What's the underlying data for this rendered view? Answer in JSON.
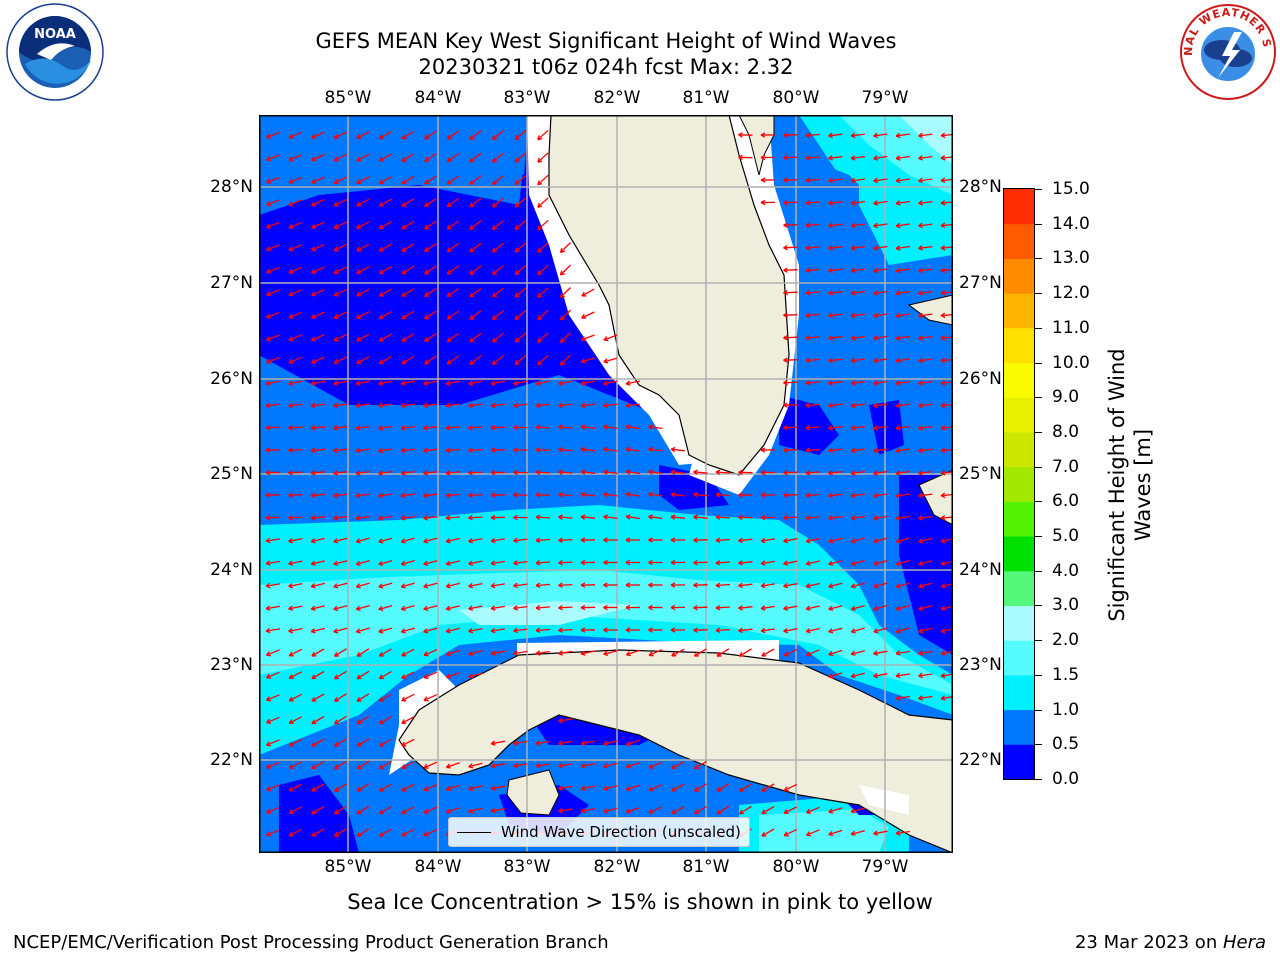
{
  "title": {
    "line1": "GEFS MEAN Key West Significant Height of Wind Waves",
    "line2": "20230321 t06z 024h fcst   Max: 2.32"
  },
  "map": {
    "lon_labels": [
      "85°W",
      "84°W",
      "83°W",
      "82°W",
      "81°W",
      "80°W",
      "79°W"
    ],
    "lat_labels": [
      "28°N",
      "27°N",
      "26°N",
      "25°N",
      "24°N",
      "23°N",
      "22°N"
    ],
    "extent": {
      "lon": [
        -86.0,
        -78.25
      ],
      "lat": [
        21.0,
        28.75
      ]
    },
    "arrow_color": "#ff0000",
    "land_color": "#efeddc"
  },
  "legend": {
    "label": "Wind Wave Direction (unscaled)"
  },
  "colorbar": {
    "label": "Significant Height of Wind Waves [m]",
    "label_lines": [
      "Significant Height of Wind",
      "Waves [m]"
    ],
    "tick_labels": [
      "0.0",
      "0.5",
      "1.0",
      "1.5",
      "2.0",
      "3.0",
      "4.0",
      "5.0",
      "6.0",
      "7.0",
      "8.0",
      "9.0",
      "10.0",
      "11.0",
      "12.0",
      "13.0",
      "14.0",
      "15.0"
    ],
    "colors": [
      "#0000ff",
      "#0077ff",
      "#00f0ff",
      "#55fbff",
      "#aafcff",
      "#55f77a",
      "#00e000",
      "#52f200",
      "#a2e800",
      "#cbe700",
      "#e8f000",
      "#fbfb00",
      "#ffe000",
      "#ffb400",
      "#ff8c00",
      "#ff5a00",
      "#ff2d00",
      "#ff0000"
    ]
  },
  "subtitle": "Sea Ice Concentration > 15% is shown in pink to yellow",
  "footer": {
    "left": "NCEP/EMC/Verification Post Processing Product Generation Branch",
    "right_prefix": "23 Mar 2023 on ",
    "right_host": "Hera"
  },
  "logos": {
    "noaa_text": "NOAA",
    "nws_text": "NATIONAL WEATHER SERVICE"
  }
}
